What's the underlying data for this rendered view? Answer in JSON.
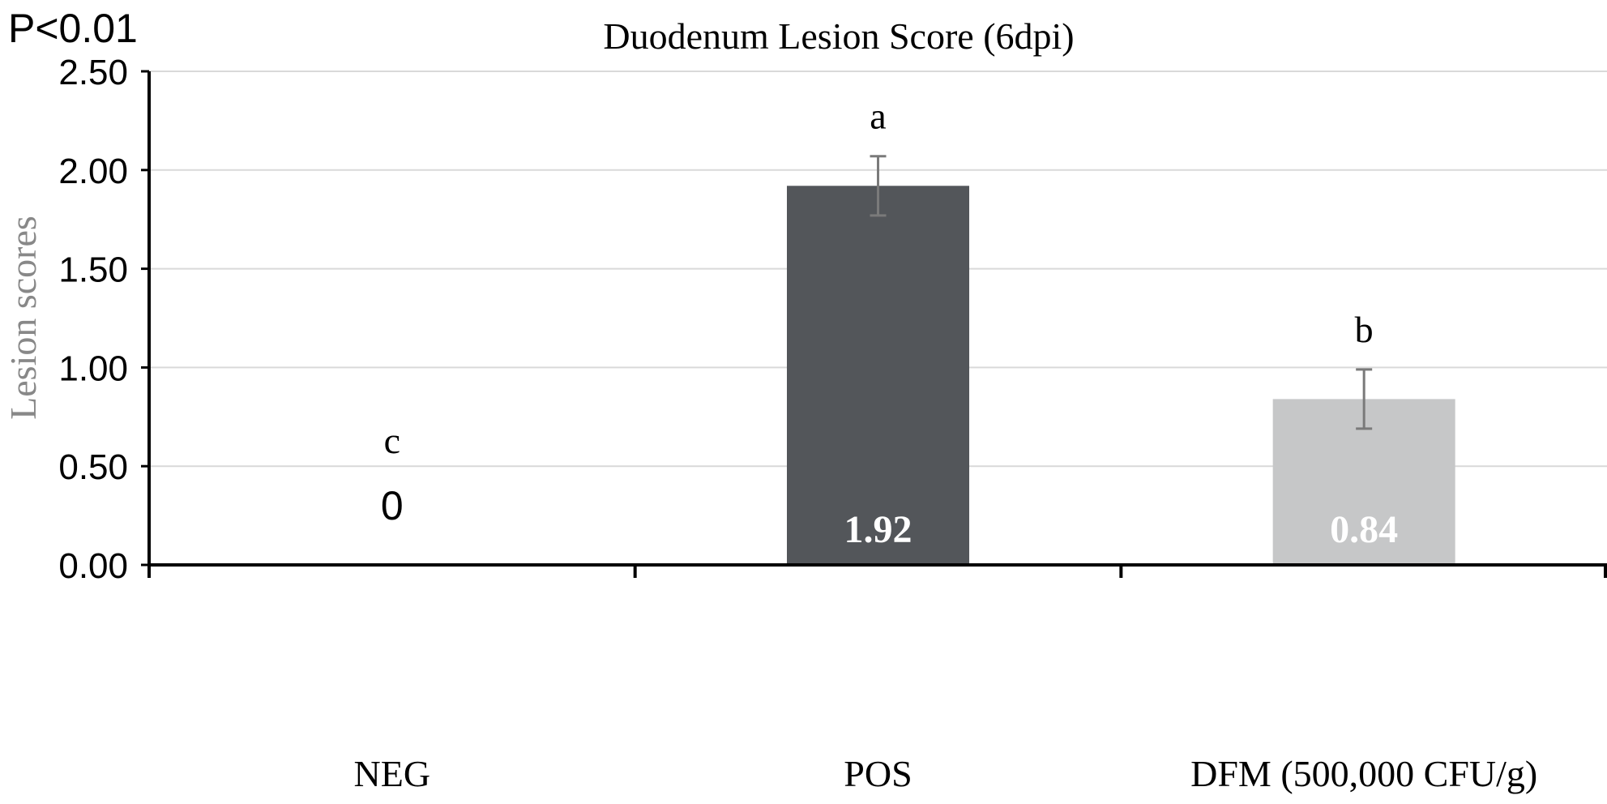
{
  "significance": "P<0.01",
  "chart_data": {
    "type": "bar",
    "title": "Duodenum Lesion Score (6dpi)",
    "xlabel": "",
    "ylabel": "Lesion scores",
    "ylim": [
      0,
      2.5
    ],
    "yticks": [
      "0.00",
      "0.50",
      "1.00",
      "1.50",
      "2.00",
      "2.50"
    ],
    "grid": true,
    "categories": [
      "NEG",
      "POS",
      "DFM (500,000 CFU/g)"
    ],
    "values": [
      0,
      1.92,
      0.84
    ],
    "value_labels": [
      "0",
      "1.92",
      "0.84"
    ],
    "errors": [
      0,
      0.15,
      0.15
    ],
    "significance_letters": [
      "c",
      "a",
      "b"
    ],
    "colors": [
      "#ffffff",
      "#53565a",
      "#c6c7c8"
    ],
    "value_label_colors": [
      "#000000",
      "#ffffff",
      "#ffffff"
    ]
  }
}
